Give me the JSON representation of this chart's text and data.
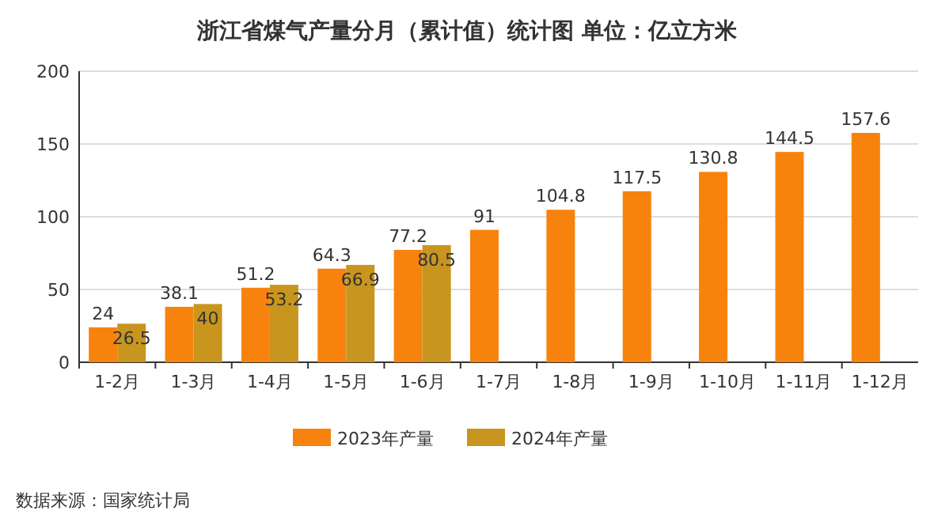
{
  "chart_data": {
    "type": "bar",
    "title": "浙江省煤气产量分月（累计值）统计图 单位：亿立方米",
    "categories": [
      "1-2月",
      "1-3月",
      "1-4月",
      "1-5月",
      "1-6月",
      "1-7月",
      "1-8月",
      "1-9月",
      "1-10月",
      "1-11月",
      "1-12月"
    ],
    "series": [
      {
        "name": "2023年产量",
        "color": "#f7830e",
        "values": [
          24,
          38.1,
          51.2,
          64.3,
          77.2,
          91,
          104.8,
          117.5,
          130.8,
          144.5,
          157.6
        ]
      },
      {
        "name": "2024年产量",
        "color": "#c8961e",
        "values": [
          26.5,
          40,
          53.2,
          66.9,
          80.5,
          null,
          null,
          null,
          null,
          null,
          null
        ]
      }
    ],
    "ylim": [
      0,
      200
    ],
    "yticks": [
      0,
      50,
      100,
      150,
      200
    ],
    "grid": "y",
    "legend": "bottom",
    "data_labels": true,
    "annotations": [
      "数据来源：国家统计局"
    ]
  }
}
